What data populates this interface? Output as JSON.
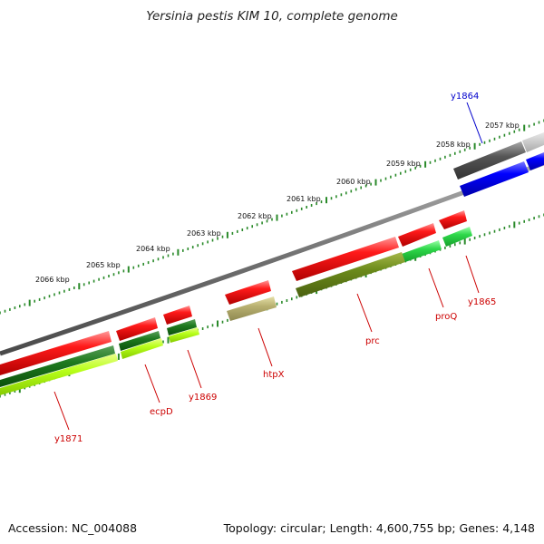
{
  "title": "Yersinia pestis KIM 10, complete genome",
  "footer": {
    "accession": "Accession: NC_004088",
    "summary": "Topology: circular; Length: 4,600,755 bp; Genes: 4,148"
  },
  "scale": {
    "labels": [
      "2057 kbp",
      "2058 kbp",
      "2059 kbp",
      "2060 kbp",
      "2061 kbp",
      "2062 kbp",
      "2063 kbp",
      "2064 kbp",
      "2065 kbp",
      "2066 kbp"
    ]
  },
  "genes": [
    {
      "name": "y1864",
      "color": "#0000cc"
    },
    {
      "name": "y1865",
      "color": "#cc0000"
    },
    {
      "name": "proQ",
      "color": "#cc0000"
    },
    {
      "name": "prc",
      "color": "#cc0000"
    },
    {
      "name": "htpX",
      "color": "#cc0000"
    },
    {
      "name": "y1869",
      "color": "#cc0000"
    },
    {
      "name": "ecpD",
      "color": "#cc0000"
    },
    {
      "name": "y1871",
      "color": "#cc0000"
    }
  ]
}
